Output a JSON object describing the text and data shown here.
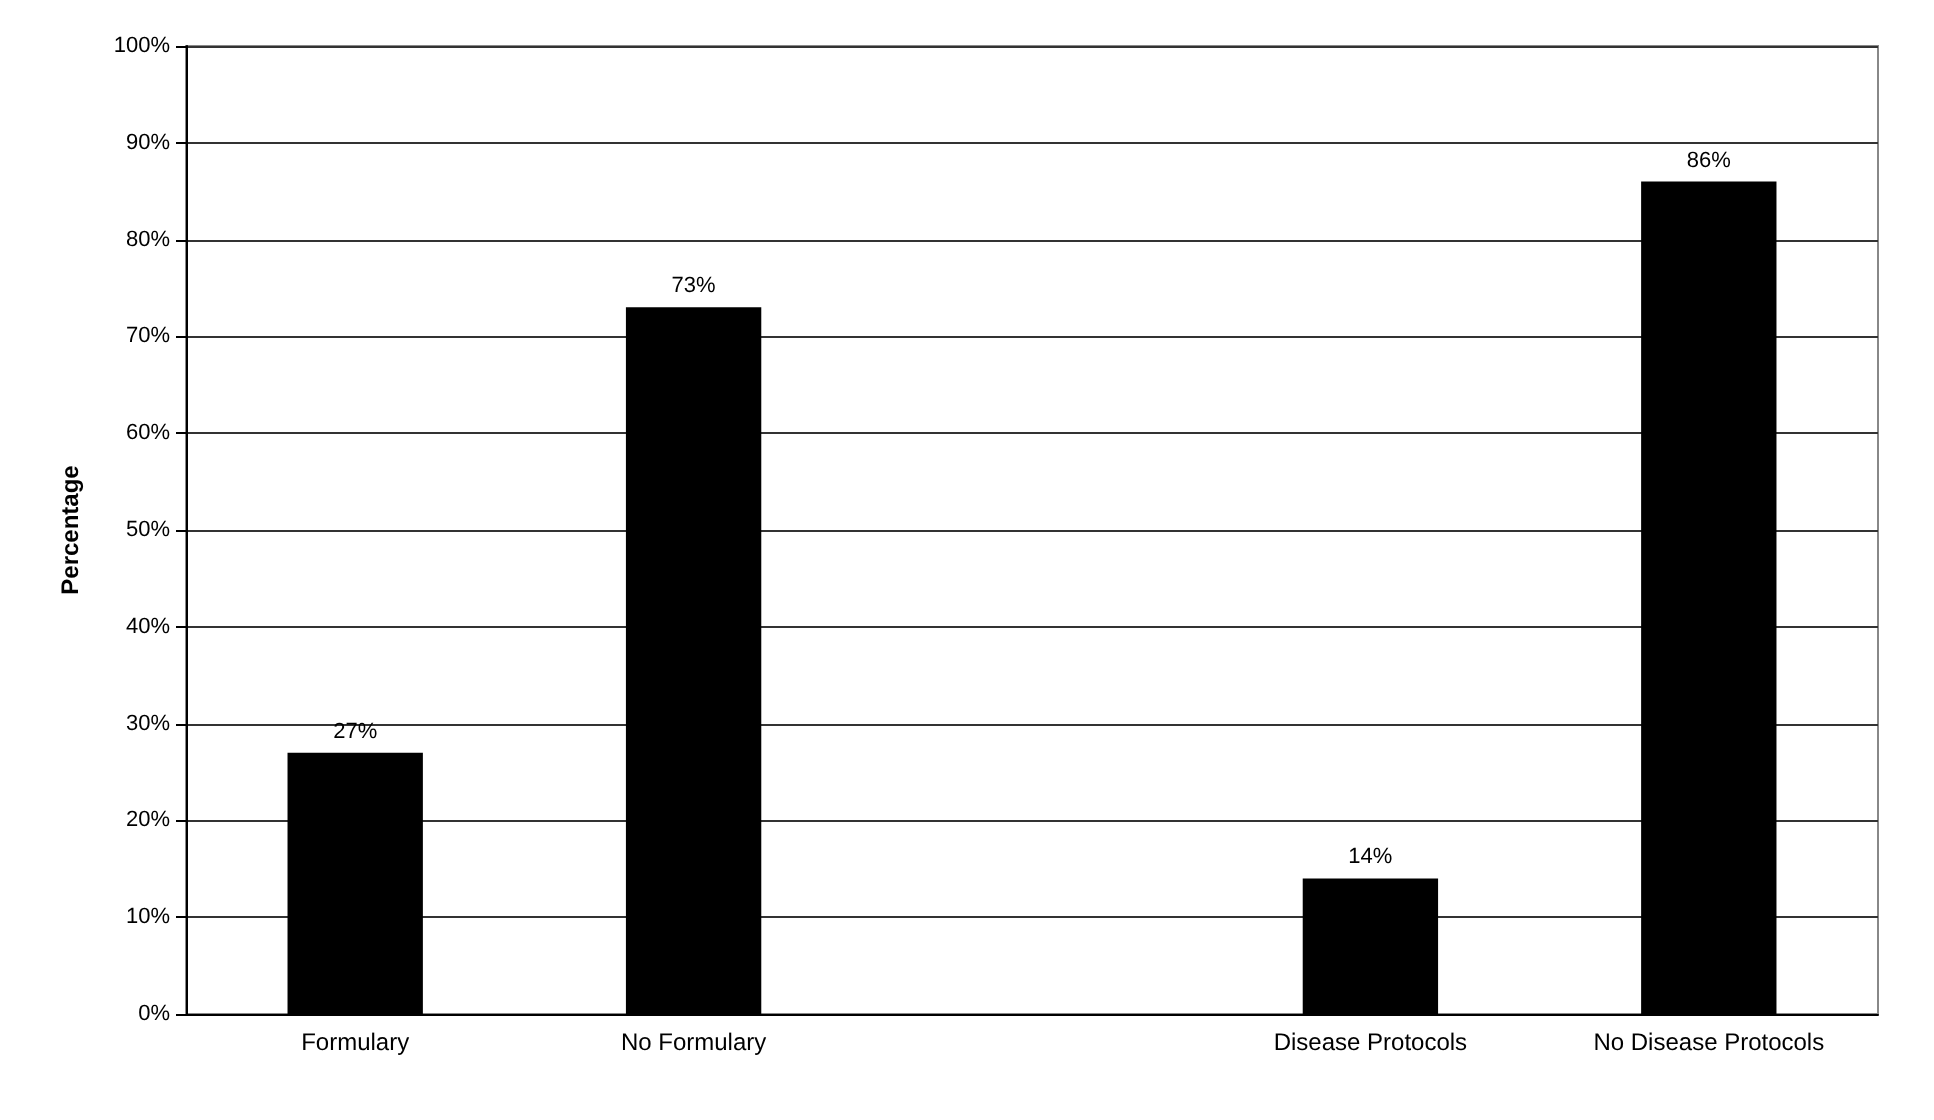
{
  "chart_data": {
    "type": "bar",
    "ylabel": "Percentage",
    "categories": [
      "Formulary",
      "No Formulary",
      null,
      "Disease Protocols",
      "No Disease Protocols"
    ],
    "values": [
      27,
      73,
      null,
      14,
      86
    ],
    "value_labels": [
      "27%",
      "73%",
      null,
      "14%",
      "86%"
    ],
    "color": "#000000",
    "ylim": [
      0,
      100
    ],
    "yticks": [
      {
        "value": 0,
        "label": "0%"
      },
      {
        "value": 10,
        "label": "10%"
      },
      {
        "value": 20,
        "label": "20%"
      },
      {
        "value": 30,
        "label": "30%"
      },
      {
        "value": 40,
        "label": "40%"
      },
      {
        "value": 50,
        "label": "50%"
      },
      {
        "value": 60,
        "label": "60%"
      },
      {
        "value": 70,
        "label": "70%"
      },
      {
        "value": 80,
        "label": "80%"
      },
      {
        "value": 90,
        "label": "90%"
      },
      {
        "value": 100,
        "label": "100%"
      }
    ],
    "grid": "y"
  }
}
